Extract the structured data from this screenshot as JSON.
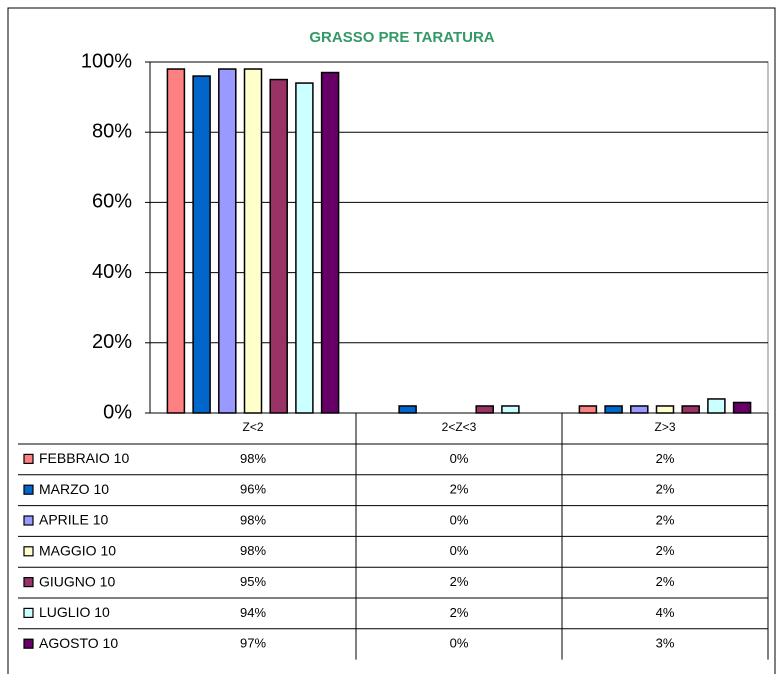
{
  "chart_data": {
    "type": "bar",
    "title": "GRASSO  PRE TARATURA",
    "categories": [
      "Z<2",
      "2<Z<3",
      "Z>3"
    ],
    "ylim": [
      0,
      100
    ],
    "yticks": [
      {
        "value": 0,
        "label": "0%"
      },
      {
        "value": 20,
        "label": "20%"
      },
      {
        "value": 40,
        "label": "40%"
      },
      {
        "value": 60,
        "label": "60%"
      },
      {
        "value": 80,
        "label": "80%"
      },
      {
        "value": 100,
        "label": "100%"
      }
    ],
    "grid": true,
    "series": [
      {
        "name": "FEBBRAIO 10",
        "color": "#FF8080",
        "values": [
          98,
          0,
          2
        ],
        "value_labels": [
          "98%",
          "0%",
          "2%"
        ]
      },
      {
        "name": "MARZO 10",
        "color": "#0066CC",
        "values": [
          96,
          2,
          2
        ],
        "value_labels": [
          "96%",
          "2%",
          "2%"
        ]
      },
      {
        "name": "APRILE 10",
        "color": "#9999FF",
        "values": [
          98,
          0,
          2
        ],
        "value_labels": [
          "98%",
          "0%",
          "2%"
        ]
      },
      {
        "name": "MAGGIO 10",
        "color": "#FFFFCC",
        "values": [
          98,
          0,
          2
        ],
        "value_labels": [
          "98%",
          "0%",
          "2%"
        ]
      },
      {
        "name": "GIUGNO 10",
        "color": "#993366",
        "values": [
          95,
          2,
          2
        ],
        "value_labels": [
          "95%",
          "2%",
          "2%"
        ]
      },
      {
        "name": "LUGLIO 10",
        "color": "#CCFFFF",
        "values": [
          94,
          2,
          4
        ],
        "value_labels": [
          "94%",
          "2%",
          "4%"
        ]
      },
      {
        "name": "AGOSTO 10",
        "color": "#660066",
        "values": [
          97,
          0,
          3
        ],
        "value_labels": [
          "97%",
          "0%",
          "3%"
        ]
      }
    ]
  }
}
